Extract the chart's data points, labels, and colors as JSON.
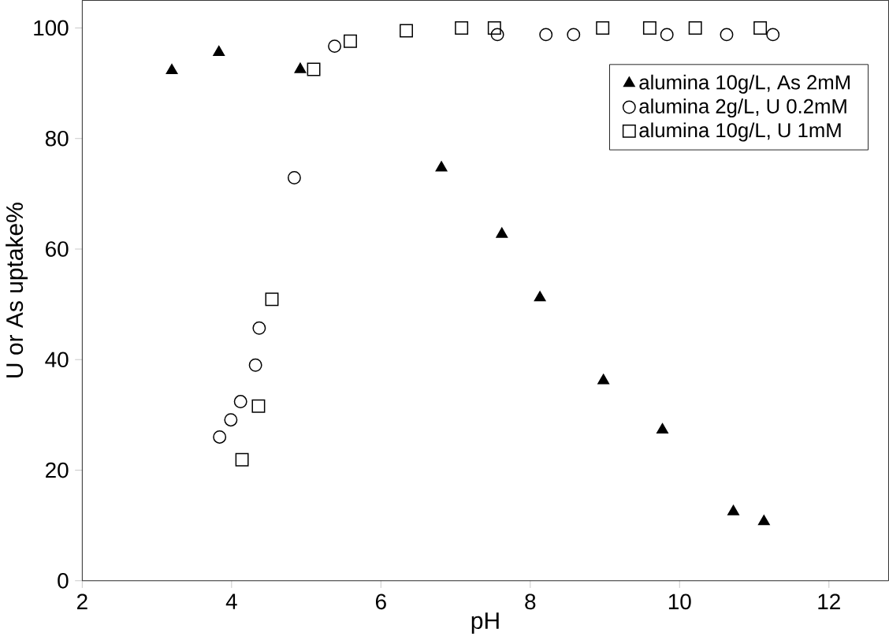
{
  "chart_data": {
    "type": "scatter",
    "xlabel": "pH",
    "ylabel": "U or As uptake%",
    "xlim": [
      2,
      12.8
    ],
    "ylim": [
      0,
      105
    ],
    "xticks": [
      2,
      4,
      6,
      8,
      10,
      12
    ],
    "yticks": [
      0,
      20,
      40,
      60,
      80,
      100
    ],
    "grid": false,
    "legend": "top right",
    "series": [
      {
        "name": "alumina 10g/L, As 2mM",
        "color": "#000000",
        "marker": "triangle",
        "x": [
          3.2,
          3.83,
          4.92,
          6.81,
          7.62,
          8.13,
          8.98,
          9.77,
          10.72,
          11.13
        ],
        "values": [
          92.3,
          95.6,
          92.5,
          74.7,
          62.7,
          51.2,
          36.2,
          27.3,
          12.5,
          10.7
        ]
      },
      {
        "name": "alumina 2g/L, U 0.2mM",
        "color": "#000000",
        "marker": "circle",
        "x": [
          3.84,
          3.99,
          4.12,
          4.32,
          4.37,
          4.84,
          5.38,
          7.56,
          8.21,
          8.58,
          9.83,
          10.63,
          11.25
        ],
        "values": [
          26.0,
          29.1,
          32.4,
          39.0,
          45.7,
          72.9,
          96.7,
          98.8,
          98.8,
          98.8,
          98.8,
          98.8,
          98.8
        ]
      },
      {
        "name": "alumina 10g/L, U 1mM",
        "color": "#000000",
        "marker": "square",
        "x": [
          4.14,
          4.36,
          4.54,
          5.1,
          5.59,
          6.34,
          7.08,
          7.52,
          8.97,
          9.6,
          10.21,
          11.08
        ],
        "values": [
          21.9,
          31.6,
          50.9,
          92.5,
          97.6,
          99.5,
          100,
          100,
          100,
          100,
          100,
          100
        ]
      }
    ]
  }
}
